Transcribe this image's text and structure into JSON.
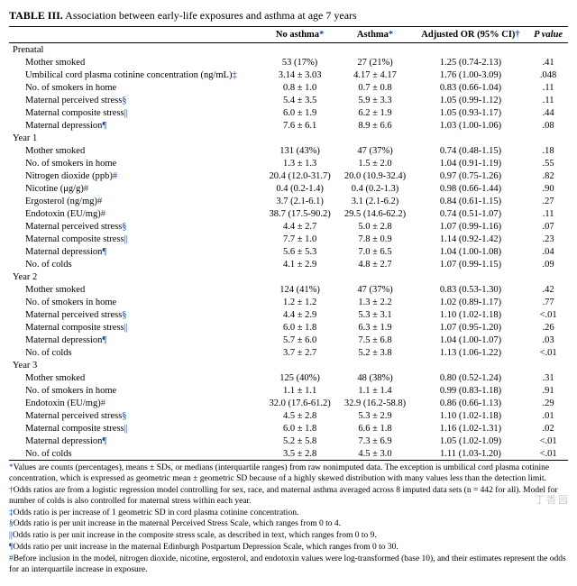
{
  "title_prefix": "TABLE III.",
  "title_text": "Association between early-life exposures and asthma at age 7 years",
  "columns": {
    "blank": "",
    "no_asthma": "No asthma",
    "asthma": "Asthma",
    "or": "Adjusted OR (95% CI)",
    "p": "P value"
  },
  "header_syms": {
    "no_asthma": "*",
    "asthma": "*",
    "or": "†"
  },
  "sections": [
    {
      "name": "Prenatal",
      "rows": [
        {
          "l": "Mother smoked",
          "s": "",
          "na": "53 (17%)",
          "a": "27 (21%)",
          "or": "1.25 (0.74-2.13)",
          "p": ".41"
        },
        {
          "l": "Umbilical cord plasma cotinine concentration (ng/mL)",
          "s": "‡",
          "na": "3.14 ± 3.03",
          "a": "4.17 ± 4.17",
          "or": "1.76 (1.00-3.09)",
          "p": ".048"
        },
        {
          "l": "No. of smokers in home",
          "s": "",
          "na": "0.8 ± 1.0",
          "a": "0.7 ± 0.8",
          "or": "0.83 (0.66-1.04)",
          "p": ".11"
        },
        {
          "l": "Maternal perceived stress",
          "s": "§",
          "na": "5.4 ± 3.5",
          "a": "5.9 ± 3.3",
          "or": "1.05 (0.99-1.12)",
          "p": ".11"
        },
        {
          "l": "Maternal composite stress",
          "s": "||",
          "na": "6.0 ± 1.9",
          "a": "6.2 ± 1.9",
          "or": "1.05 (0.93-1.17)",
          "p": ".44"
        },
        {
          "l": "Maternal depression",
          "s": "¶",
          "na": "7.6 ± 6.1",
          "a": "8.9 ± 6.6",
          "or": "1.03 (1.00-1.06)",
          "p": ".08"
        }
      ]
    },
    {
      "name": "Year 1",
      "rows": [
        {
          "l": "Mother smoked",
          "s": "",
          "na": "131 (43%)",
          "a": "47 (37%)",
          "or": "0.74 (0.48-1.15)",
          "p": ".18"
        },
        {
          "l": "No. of smokers in home",
          "s": "",
          "na": "1.3 ± 1.3",
          "a": "1.5 ± 2.0",
          "or": "1.04 (0.91-1.19)",
          "p": ".55"
        },
        {
          "l": "Nitrogen dioxide (ppb)",
          "s": "#",
          "na": "20.4 (12.0-31.7)",
          "a": "20.0 (10.9-32.4)",
          "or": "0.97 (0.75-1.26)",
          "p": ".82"
        },
        {
          "l": "Nicotine (μg/g)",
          "s": "#",
          "na": "0.4 (0.2-1.4)",
          "a": "0.4 (0.2-1.3)",
          "or": "0.98 (0.66-1.44)",
          "p": ".90"
        },
        {
          "l": "Ergosterol (ng/mg)",
          "s": "#",
          "na": "3.7 (2.1-6.1)",
          "a": "3.1 (2.1-6.2)",
          "or": "0.84 (0.61-1.15)",
          "p": ".27"
        },
        {
          "l": "Endotoxin (EU/mg)",
          "s": "#",
          "na": "38.7 (17.5-90.2)",
          "a": "29.5 (14.6-62.2)",
          "or": "0.74 (0.51-1.07)",
          "p": ".11"
        },
        {
          "l": "Maternal perceived stress",
          "s": "§",
          "na": "4.4 ± 2.7",
          "a": "5.0 ± 2.8",
          "or": "1.07 (0.99-1.16)",
          "p": ".07"
        },
        {
          "l": "Maternal composite stress",
          "s": "||",
          "na": "7.7 ± 1.0",
          "a": "7.8 ± 0.9",
          "or": "1.14 (0.92-1.42)",
          "p": ".23"
        },
        {
          "l": "Maternal depression",
          "s": "¶",
          "na": "5.6 ± 5.3",
          "a": "7.0 ± 6.5",
          "or": "1.04 (1.00-1.08)",
          "p": ".04"
        },
        {
          "l": "No. of colds",
          "s": "",
          "na": "4.1 ± 2.9",
          "a": "4.8 ± 2.7",
          "or": "1.07 (0.99-1.15)",
          "p": ".09"
        }
      ]
    },
    {
      "name": "Year 2",
      "rows": [
        {
          "l": "Mother smoked",
          "s": "",
          "na": "124 (41%)",
          "a": "47 (37%)",
          "or": "0.83 (0.53-1.30)",
          "p": ".42"
        },
        {
          "l": "No. of smokers in home",
          "s": "",
          "na": "1.2 ± 1.2",
          "a": "1.3 ± 2.2",
          "or": "1.02 (0.89-1.17)",
          "p": ".77"
        },
        {
          "l": "Maternal perceived stress",
          "s": "§",
          "na": "4.4 ± 2.9",
          "a": "5.3 ± 3.1",
          "or": "1.10 (1.02-1.18)",
          "p": "<.01"
        },
        {
          "l": "Maternal composite stress",
          "s": "||",
          "na": "6.0 ± 1.8",
          "a": "6.3 ± 1.9",
          "or": "1.07 (0.95-1.20)",
          "p": ".26"
        },
        {
          "l": "Maternal depression",
          "s": "¶",
          "na": "5.7 ± 6.0",
          "a": "7.5 ± 6.8",
          "or": "1.04 (1.00-1.07)",
          "p": ".03"
        },
        {
          "l": "No. of colds",
          "s": "",
          "na": "3.7 ± 2.7",
          "a": "5.2 ± 3.8",
          "or": "1.13 (1.06-1.22)",
          "p": "<.01"
        }
      ]
    },
    {
      "name": "Year 3",
      "rows": [
        {
          "l": "Mother smoked",
          "s": "",
          "na": "125 (40%)",
          "a": "48 (38%)",
          "or": "0.80 (0.52-1.24)",
          "p": ".31"
        },
        {
          "l": "No. of smokers in home",
          "s": "",
          "na": "1.1 ± 1.1",
          "a": "1.1 ± 1.4",
          "or": "0.99 (0.83-1.18)",
          "p": ".91"
        },
        {
          "l": "Endotoxin (EU/mg)",
          "s": "#",
          "na": "32.0 (17.6-61.2)",
          "a": "32.9 (16.2-58.8)",
          "or": "0.86 (0.66-1.13)",
          "p": ".29"
        },
        {
          "l": "Maternal perceived stress",
          "s": "§",
          "na": "4.5 ± 2.8",
          "a": "5.3 ± 2.9",
          "or": "1.10 (1.02-1.18)",
          "p": ".01"
        },
        {
          "l": "Maternal composite stress",
          "s": "||",
          "na": "6.0 ± 1.8",
          "a": "6.6 ± 1.8",
          "or": "1.16 (1.02-1.31)",
          "p": ".02"
        },
        {
          "l": "Maternal depression",
          "s": "¶",
          "na": "5.2 ± 5.8",
          "a": "7.3 ± 6.9",
          "or": "1.05 (1.02-1.09)",
          "p": "<.01"
        },
        {
          "l": "No. of colds",
          "s": "",
          "na": "3.5 ± 2.8",
          "a": "4.5 ± 3.0",
          "or": "1.11 (1.03-1.20)",
          "p": "<.01"
        }
      ]
    }
  ],
  "footnotes": [
    {
      "s": "*",
      "t": "Values are counts (percentages), means ± SDs, or medians (interquartile ranges) from raw nonimputed data. The exception is umbilical cord plasma cotinine concentration, which is expressed as geometric mean ± geometric SD because of a highly skewed distribution with many values less than the detection limit."
    },
    {
      "s": "†",
      "t": "Odds ratios are from a logistic regression model controlling for sex, race, and maternal asthma averaged across 8 imputed data sets (n = 442 for all). Model for number of colds is also controlled for maternal stress within each year."
    },
    {
      "s": "‡",
      "t": "Odds ratio is per increase of 1 geometric SD in cord plasma cotinine concentration."
    },
    {
      "s": "§",
      "t": "Odds ratio is per unit increase in the maternal Perceived Stress Scale, which ranges from 0 to 4."
    },
    {
      "s": "||",
      "t": "Odds ratio is per unit increase in the composite stress scale, as described in text, which ranges from 0 to 9."
    },
    {
      "s": "¶",
      "t": "Odds ratio per unit increase in the maternal Edinburgh Postpartum Depression Scale, which ranges from 0 to 30."
    },
    {
      "s": "#",
      "t": "Before inclusion in the model, nitrogen dioxide, nicotine, ergosterol, and endotoxin values were log-transformed (base 10), and their estimates represent the odds for an interquartile increase in exposure."
    }
  ],
  "watermark": "丁香园"
}
